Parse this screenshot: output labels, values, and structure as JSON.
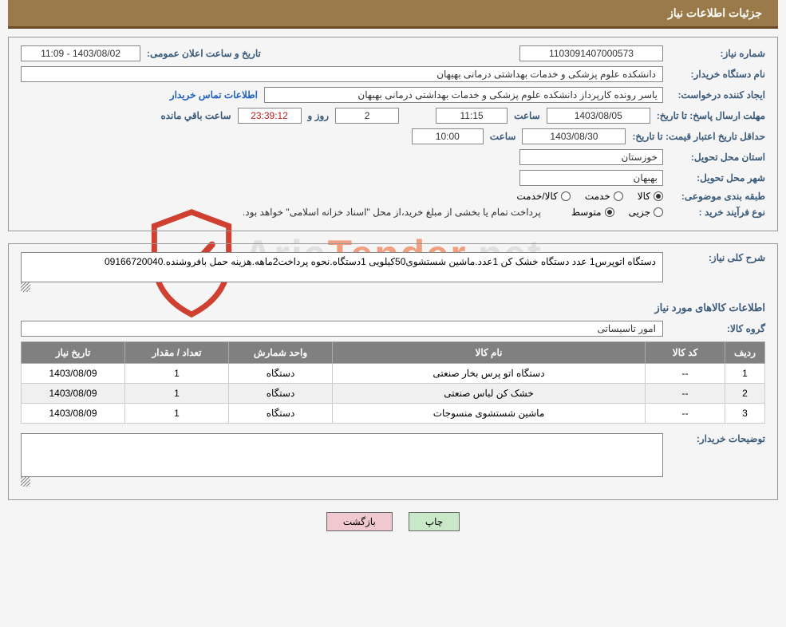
{
  "header": {
    "title": "جزئیات اطلاعات نیاز"
  },
  "fields": {
    "need_number": {
      "label": "شماره نیاز:",
      "value": "1103091407000573"
    },
    "announce": {
      "label": "تاریخ و ساعت اعلان عمومی:",
      "value": "1403/08/02 - 11:09"
    },
    "buyer_org": {
      "label": "نام دستگاه خریدار:",
      "value": "دانشکده علوم پزشکی و خدمات بهداشتی درمانی بهبهان"
    },
    "requester": {
      "label": "ایجاد کننده درخواست:",
      "value": "یاسر رونده کارپرداز دانشکده علوم پزشکی و خدمات بهداشتی درمانی بهبهان"
    },
    "contact_link": "اطلاعات تماس خریدار",
    "reply_deadline": {
      "label": "مهلت ارسال پاسخ: تا تاریخ:",
      "date": "1403/08/05",
      "time_label": "ساعت",
      "time": "11:15",
      "days": "2",
      "days_label": "روز و",
      "remain": "23:39:12",
      "remain_label": "ساعت باقي مانده"
    },
    "price_validity": {
      "label": "حداقل تاریخ اعتبار قیمت: تا تاریخ:",
      "date": "1403/08/30",
      "time_label": "ساعت",
      "time": "10:00"
    },
    "province": {
      "label": "استان محل تحویل:",
      "value": "خوزستان"
    },
    "city": {
      "label": "شهر محل تحویل:",
      "value": "بهبهان"
    },
    "classification": {
      "label": "طبقه بندی موضوعی:",
      "options": [
        "کالا",
        "خدمت",
        "کالا/خدمت"
      ],
      "selected": 0
    },
    "process_type": {
      "label": "نوع فرآیند خرید :",
      "options": [
        "جزیی",
        "متوسط"
      ],
      "selected": 1,
      "note": "پرداخت تمام یا بخشی از مبلغ خرید،از محل \"اسناد خزانه اسلامی\" خواهد بود."
    }
  },
  "details": {
    "general_desc": {
      "label": "شرح کلی نیاز:",
      "value": "دستگاه اتوپرس1 عدد دستگاه خشک کن 1عدد.ماشین شستشوی50کیلویی 1دستگاه.نحوه پرداخت2ماهه.هزینه حمل بافروشنده.09166720040"
    },
    "items_heading": "اطلاعات کالاهای مورد نیاز",
    "group": {
      "label": "گروه کالا:",
      "value": "امور تاسیساتی"
    },
    "buyer_notes": {
      "label": "توضیحات خریدار:",
      "value": ""
    }
  },
  "table": {
    "columns": [
      "ردیف",
      "کد کالا",
      "نام کالا",
      "واحد شمارش",
      "تعداد / مقدار",
      "تاریخ نیاز"
    ],
    "rows": [
      [
        "1",
        "--",
        "دستگاه اتو پرس بخار صنعتی",
        "دستگاه",
        "1",
        "1403/08/09"
      ],
      [
        "2",
        "--",
        "خشک کن لباس صنعتی",
        "دستگاه",
        "1",
        "1403/08/09"
      ],
      [
        "3",
        "--",
        "ماشین شستشوی منسوجات",
        "دستگاه",
        "1",
        "1403/08/09"
      ]
    ]
  },
  "buttons": {
    "print": "چاپ",
    "back": "بازگشت"
  },
  "watermark": {
    "text1": "Aria",
    "text2": "Tender",
    "text3": ".net"
  }
}
